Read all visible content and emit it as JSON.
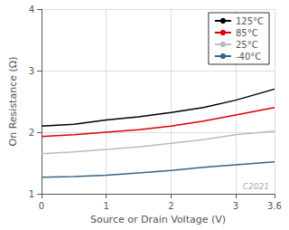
{
  "chart_data": {
    "type": "line",
    "xlabel": "Source or Drain Voltage (V)",
    "ylabel": "On Resistance (Ω)",
    "x": [
      0,
      0.5,
      1.0,
      1.5,
      2.0,
      2.5,
      3.0,
      3.6
    ],
    "series": [
      {
        "name": "125°C",
        "color": "#000000",
        "values": [
          2.1,
          2.13,
          2.2,
          2.25,
          2.32,
          2.4,
          2.52,
          2.7
        ]
      },
      {
        "name": "85°C",
        "color": "#dd0000",
        "values": [
          1.93,
          1.96,
          2.0,
          2.04,
          2.1,
          2.18,
          2.28,
          2.4
        ]
      },
      {
        "name": "25°C",
        "color": "#bbbbbb",
        "values": [
          1.65,
          1.68,
          1.72,
          1.76,
          1.82,
          1.88,
          1.96,
          2.02
        ]
      },
      {
        "name": "-40°C",
        "color": "#336688",
        "values": [
          1.27,
          1.28,
          1.3,
          1.34,
          1.38,
          1.43,
          1.47,
          1.52
        ]
      }
    ],
    "xlim": [
      0,
      3.6
    ],
    "ylim": [
      1,
      4
    ],
    "xticks": [
      0,
      1,
      2,
      3,
      3.6
    ],
    "yticks": [
      1,
      2,
      3,
      4
    ],
    "grid": true,
    "legend": "upper right",
    "annotation": "C2021"
  }
}
